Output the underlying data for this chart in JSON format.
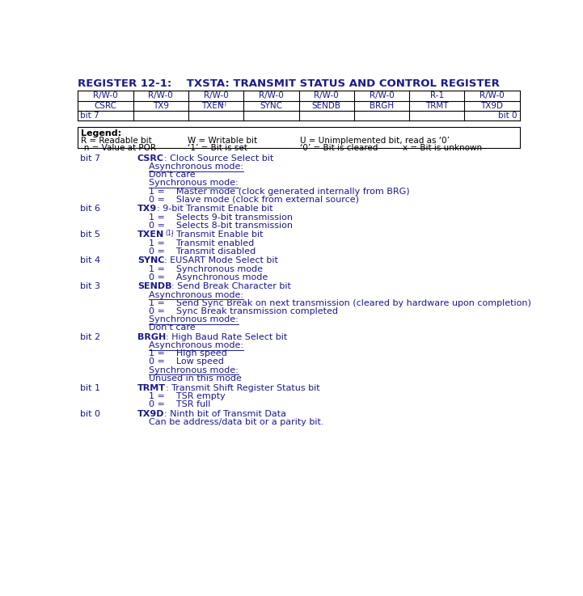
{
  "title": "REGISTER 12-1:    TXSTA: TRANSMIT STATUS AND CONTROL REGISTER",
  "title_color": "#1a1a8c",
  "reg_access": [
    "R/W-0",
    "R/W-0",
    "R/W-0",
    "R/W-0",
    "R/W-0",
    "R/W-0",
    "R-1",
    "R/W-0"
  ],
  "reg_names_raw": [
    "CSRC",
    "TX9",
    "TXEN(1)",
    "SYNC",
    "SENDB",
    "BRGH",
    "TRMT",
    "TX9D"
  ],
  "bit_high": "bit 7",
  "bit_low": "bit 0",
  "legend_title": "Legend:",
  "legend_items": [
    [
      "R = Readable bit",
      "W = Writable bit",
      "U = Unimplemented bit, read as ‘0’"
    ],
    [
      "-n = Value at POR",
      "‘1’ = Bit is set",
      "‘0’ = Bit is cleared",
      "x = Bit is unknown"
    ]
  ],
  "text_color": "#1a1a8c",
  "black": "#000000",
  "bit_descriptions": [
    {
      "bit": "bit 7",
      "name": "CSRC",
      "name_suffix": ": Clock Source Select bit",
      "lines": [
        {
          "text": "Asynchronous mode:",
          "underline": true
        },
        {
          "text": "Don't care",
          "underline": false
        },
        {
          "text": "Synchronous mode:",
          "underline": true
        },
        {
          "text": "1 =    Master mode (clock generated internally from BRG)",
          "underline": false
        },
        {
          "text": "0 =    Slave mode (clock from external source)",
          "underline": false
        }
      ]
    },
    {
      "bit": "bit 6",
      "name": "TX9",
      "name_suffix": ": 9-bit Transmit Enable bit",
      "lines": [
        {
          "text": "1 =    Selects 9-bit transmission",
          "underline": false
        },
        {
          "text": "0 =    Selects 8-bit transmission",
          "underline": false
        }
      ]
    },
    {
      "bit": "bit 5",
      "name": "TXEN",
      "name_suffix": ": Transmit Enable bit",
      "name_superscript": "(1)",
      "lines": [
        {
          "text": "1 =    Transmit enabled",
          "underline": false
        },
        {
          "text": "0 =    Transmit disabled",
          "underline": false
        }
      ]
    },
    {
      "bit": "bit 4",
      "name": "SYNC",
      "name_suffix": ": EUSART Mode Select bit",
      "lines": [
        {
          "text": "1 =    Synchronous mode",
          "underline": false
        },
        {
          "text": "0 =    Asynchronous mode",
          "underline": false
        }
      ]
    },
    {
      "bit": "bit 3",
      "name": "SENDB",
      "name_suffix": ": Send Break Character bit",
      "lines": [
        {
          "text": "Asynchronous mode:",
          "underline": true
        },
        {
          "text": "1 =    Send Sync Break on next transmission (cleared by hardware upon completion)",
          "underline": false
        },
        {
          "text": "0 =    Sync Break transmission completed",
          "underline": false
        },
        {
          "text": "Synchronous mode:",
          "underline": true
        },
        {
          "text": "Don't care",
          "underline": false
        }
      ]
    },
    {
      "bit": "bit 2",
      "name": "BRGH",
      "name_suffix": ": High Baud Rate Select bit",
      "lines": [
        {
          "text": "Asynchronous mode:",
          "underline": true
        },
        {
          "text": "1 =    High speed",
          "underline": false
        },
        {
          "text": "0 =    Low speed",
          "underline": false
        },
        {
          "text": "Synchronous mode:",
          "underline": true
        },
        {
          "text": "Unused in this mode",
          "underline": false
        }
      ]
    },
    {
      "bit": "bit 1",
      "name": "TRMT",
      "name_suffix": ": Transmit Shift Register Status bit",
      "lines": [
        {
          "text": "1 =    TSR empty",
          "underline": false
        },
        {
          "text": "0 =    TSR full",
          "underline": false
        }
      ]
    },
    {
      "bit": "bit 0",
      "name": "TX9D",
      "name_suffix": ": Ninth bit of Transmit Data",
      "lines": [
        {
          "text": "Can be address/data bit or a parity bit.",
          "underline": false
        }
      ]
    }
  ]
}
